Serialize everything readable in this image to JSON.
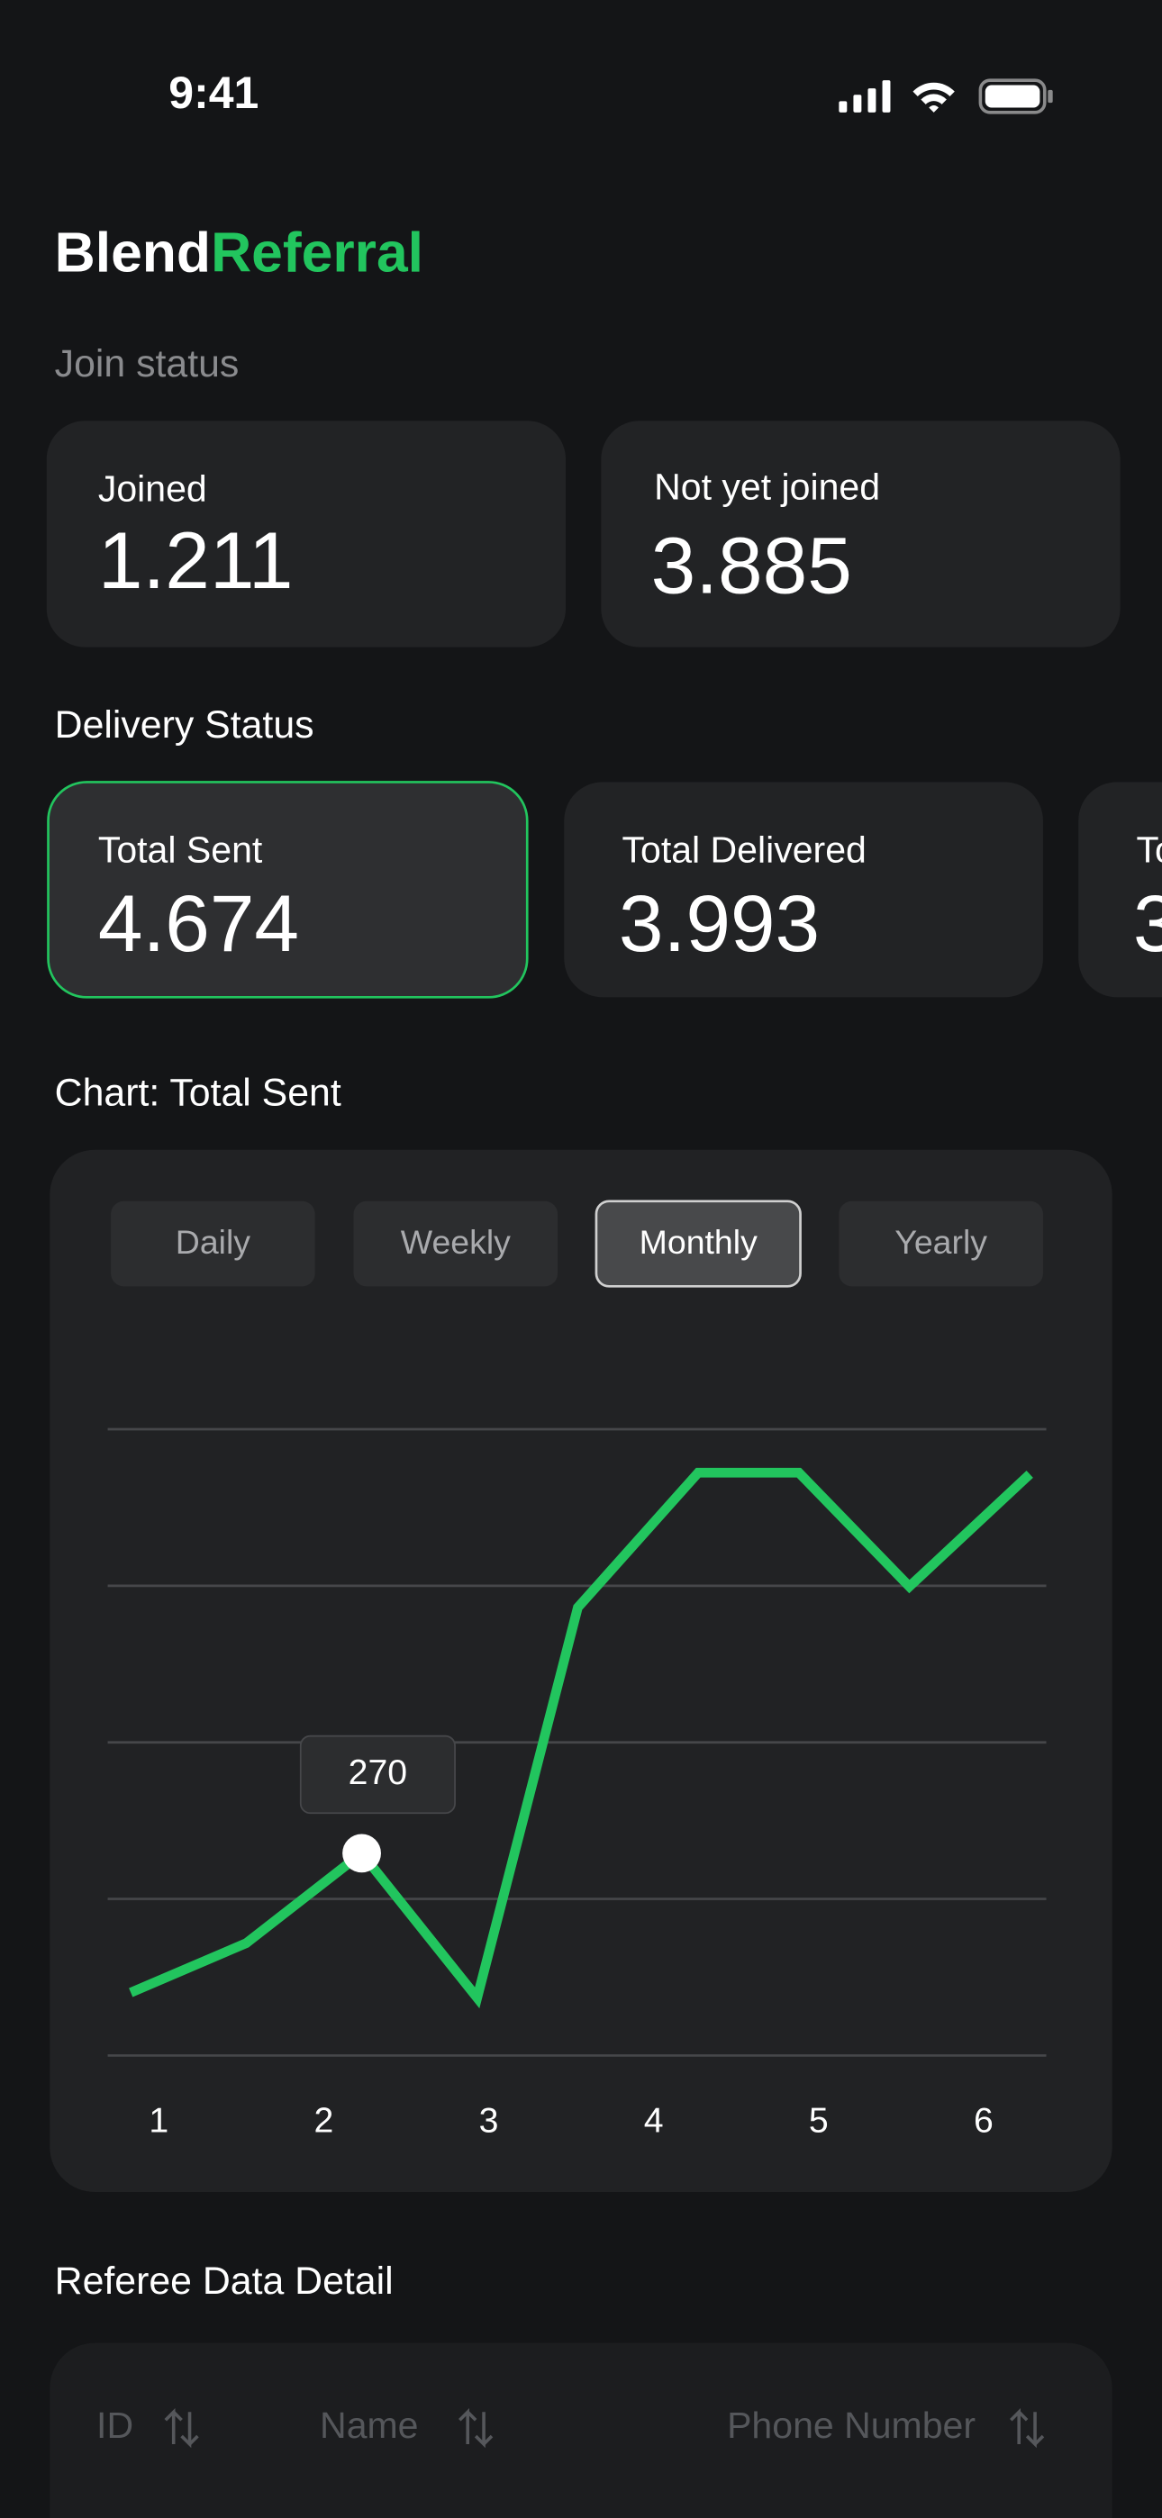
{
  "status_bar": {
    "time": "9:41"
  },
  "header": {
    "brand": "Blend",
    "brand_accent": "Referral"
  },
  "join_status": {
    "title": "Join status",
    "cards": [
      {
        "label": "Joined",
        "value": "1.211"
      },
      {
        "label": "Not yet joined",
        "value": "3.885"
      }
    ]
  },
  "delivery_status": {
    "title": "Delivery Status",
    "selected": 0,
    "cards": [
      {
        "label": "Total Sent",
        "value": "4.674"
      },
      {
        "label": "Total Delivered",
        "value": "3.993"
      },
      {
        "label": "To",
        "value": "3"
      }
    ]
  },
  "chart_section": {
    "title": "Chart: Total Sent",
    "tabs": [
      "Daily",
      "Weekly",
      "Monthly",
      "Yearly"
    ],
    "active_tab": 2
  },
  "chart_data": {
    "type": "line",
    "x": [
      0.83,
      1.53,
      2.23,
      2.93,
      3.54,
      4.27,
      4.88,
      5.55,
      6.28
    ],
    "values": [
      84,
      150,
      270,
      77,
      598,
      778,
      778,
      626,
      776
    ],
    "color": "#22c55e",
    "xlim": [
      0.69,
      6.38
    ],
    "xticks": [
      1,
      2,
      3,
      4,
      5,
      6
    ],
    "ylim": [
      0,
      836
    ],
    "yticks": [
      0,
      209,
      418,
      627,
      836
    ],
    "grid": true
  },
  "table": {
    "title": "Referee Data Detail",
    "columns": [
      "ID",
      "Name",
      "Phone Number"
    ]
  }
}
